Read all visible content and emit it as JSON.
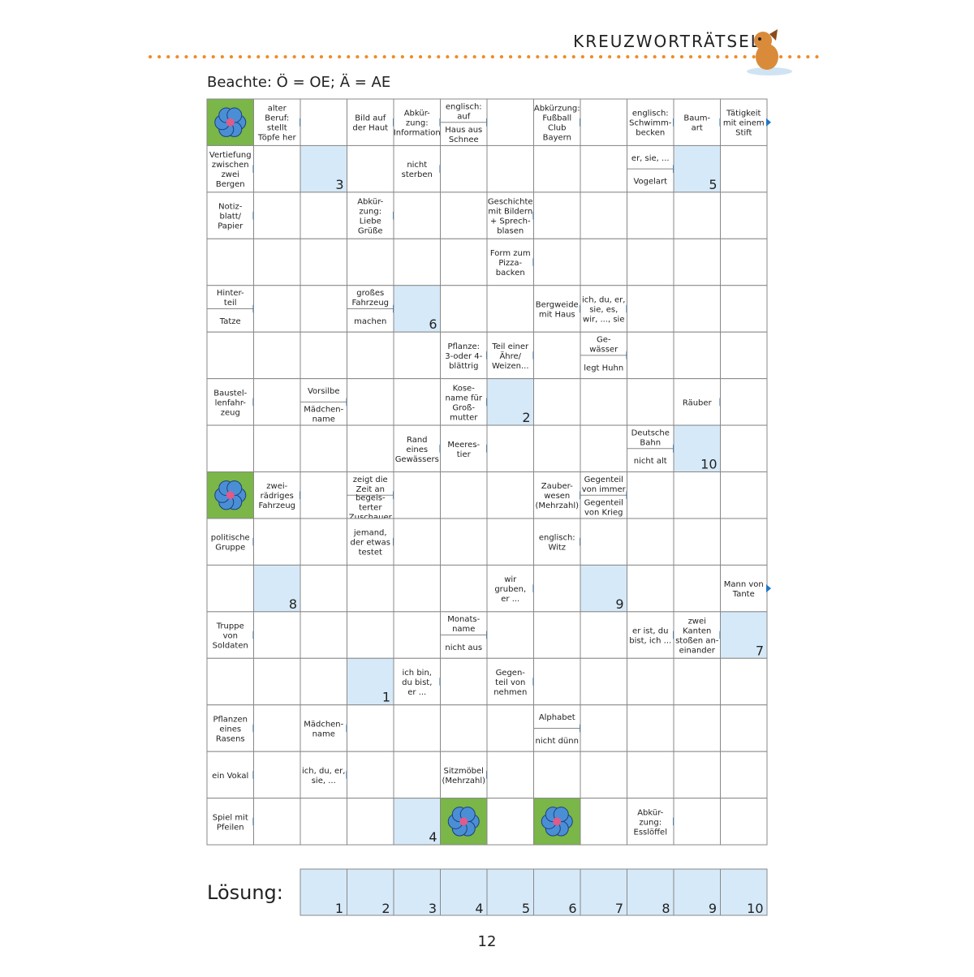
{
  "header": {
    "title": "KREUZWORTRÄTSEL"
  },
  "note": "Beachte: Ö = OE; Ä = AE",
  "grid": {
    "rows": [
      [
        null,
        "alter\nBeruf:\nstellt\nTöpfe her",
        null,
        "Bild auf\nder Haut",
        "Abkür-\nzung:\nInformation",
        [
          "englisch:\nauf",
          "Haus aus\nSchnee"
        ],
        null,
        "Abkürzung:\nFußball\nClub\nBayern",
        null,
        "englisch:\nSchwimm-\nbecken",
        "Baum-\nart",
        "Tätigkeit\nmit einem\nStift"
      ],
      [
        "Vertiefung\nzwischen\nzwei\nBergen",
        null,
        3,
        null,
        "nicht\nsterben",
        null,
        null,
        null,
        null,
        [
          "er, sie, ...",
          "Vogelart"
        ],
        5,
        null
      ],
      [
        "Notiz-\nblatt/\nPapier",
        null,
        null,
        "Abkür-\nzung:\nLiebe\nGrüße",
        null,
        null,
        "Geschichte\nmit Bildern\n+ Sprech-\nblasen",
        null,
        null,
        null,
        null,
        null
      ],
      [
        null,
        null,
        null,
        null,
        null,
        null,
        "Form zum\nPizza-\nbacken",
        null,
        null,
        null,
        null,
        null
      ],
      [
        [
          "Hinter-\nteil",
          "Tatze"
        ],
        null,
        null,
        [
          "großes\nFahrzeug",
          "machen"
        ],
        6,
        null,
        null,
        "Bergweide\nmit Haus",
        "ich, du, er,\nsie, es,\nwir, ..., sie",
        null,
        null,
        null
      ],
      [
        null,
        null,
        null,
        null,
        null,
        "Pflanze:\n3-oder 4-\nblättrig",
        "Teil einer\nÄhre/\nWeizen...",
        null,
        [
          "Ge-\nwässer",
          "legt Huhn"
        ],
        null,
        null,
        null
      ],
      [
        "Baustel-\nlenfahr-\nzeug",
        null,
        [
          "Vorsilbe",
          "Mädchen-\nname"
        ],
        null,
        null,
        "Kose-\nname für\nGroß-\nmutter",
        2,
        null,
        null,
        null,
        "Räuber",
        null
      ],
      [
        null,
        null,
        null,
        null,
        "Rand\neines\nGewässers",
        "Meeres-\ntier",
        null,
        null,
        null,
        [
          "Deutsche\nBahn",
          "nicht alt"
        ],
        10,
        null
      ],
      [
        null,
        "zwei-\nrädriges\nFahrzeug",
        null,
        [
          "zeigt die\nZeit an",
          "begeis-\nterter\nZuschauer"
        ],
        null,
        null,
        null,
        "Zauber-\nwesen\n(Mehrzahl)",
        [
          "Gegenteil\nvon immer",
          "Gegenteil\nvon Krieg"
        ],
        null,
        null,
        null
      ],
      [
        "politische\nGruppe",
        null,
        null,
        "jemand,\nder etwas\ntestet",
        null,
        null,
        null,
        "englisch:\nWitz",
        null,
        null,
        null,
        null
      ],
      [
        null,
        8,
        null,
        null,
        null,
        null,
        "wir\ngruben,\ner ...",
        null,
        9,
        null,
        null,
        "Mann von\nTante"
      ],
      [
        "Truppe\nvon\nSoldaten",
        null,
        null,
        null,
        null,
        [
          "Monats-\nname",
          "nicht aus"
        ],
        null,
        null,
        null,
        "er ist, du\nbist, ich ...",
        "zwei\nKanten\nstoßen an-\neinander",
        7
      ],
      [
        null,
        null,
        null,
        1,
        "ich bin,\ndu bist,\ner ...",
        null,
        "Gegen-\nteil von\nnehmen",
        null,
        null,
        null,
        null,
        null
      ],
      [
        "Pflanzen\neines\nRasens",
        null,
        "Mädchen-\nname",
        null,
        null,
        null,
        null,
        [
          "Alphabet",
          "nicht dünn"
        ],
        null,
        null,
        null,
        null
      ],
      [
        "ein Vokal",
        null,
        "ich, du, er,\nsie, ...",
        null,
        null,
        "Sitzmöbel\n(Mehrzahl)",
        null,
        null,
        null,
        null,
        null,
        null
      ],
      [
        "Spiel mit\nPfeilen",
        null,
        null,
        null,
        4,
        null,
        null,
        null,
        null,
        "Abkür-\nzung:\nEsslöffel",
        null,
        null
      ]
    ]
  },
  "solution": {
    "label": "Lösung:",
    "numbers": [
      1,
      2,
      3,
      4,
      5,
      6,
      7,
      8,
      9,
      10
    ]
  },
  "page_number": "12"
}
